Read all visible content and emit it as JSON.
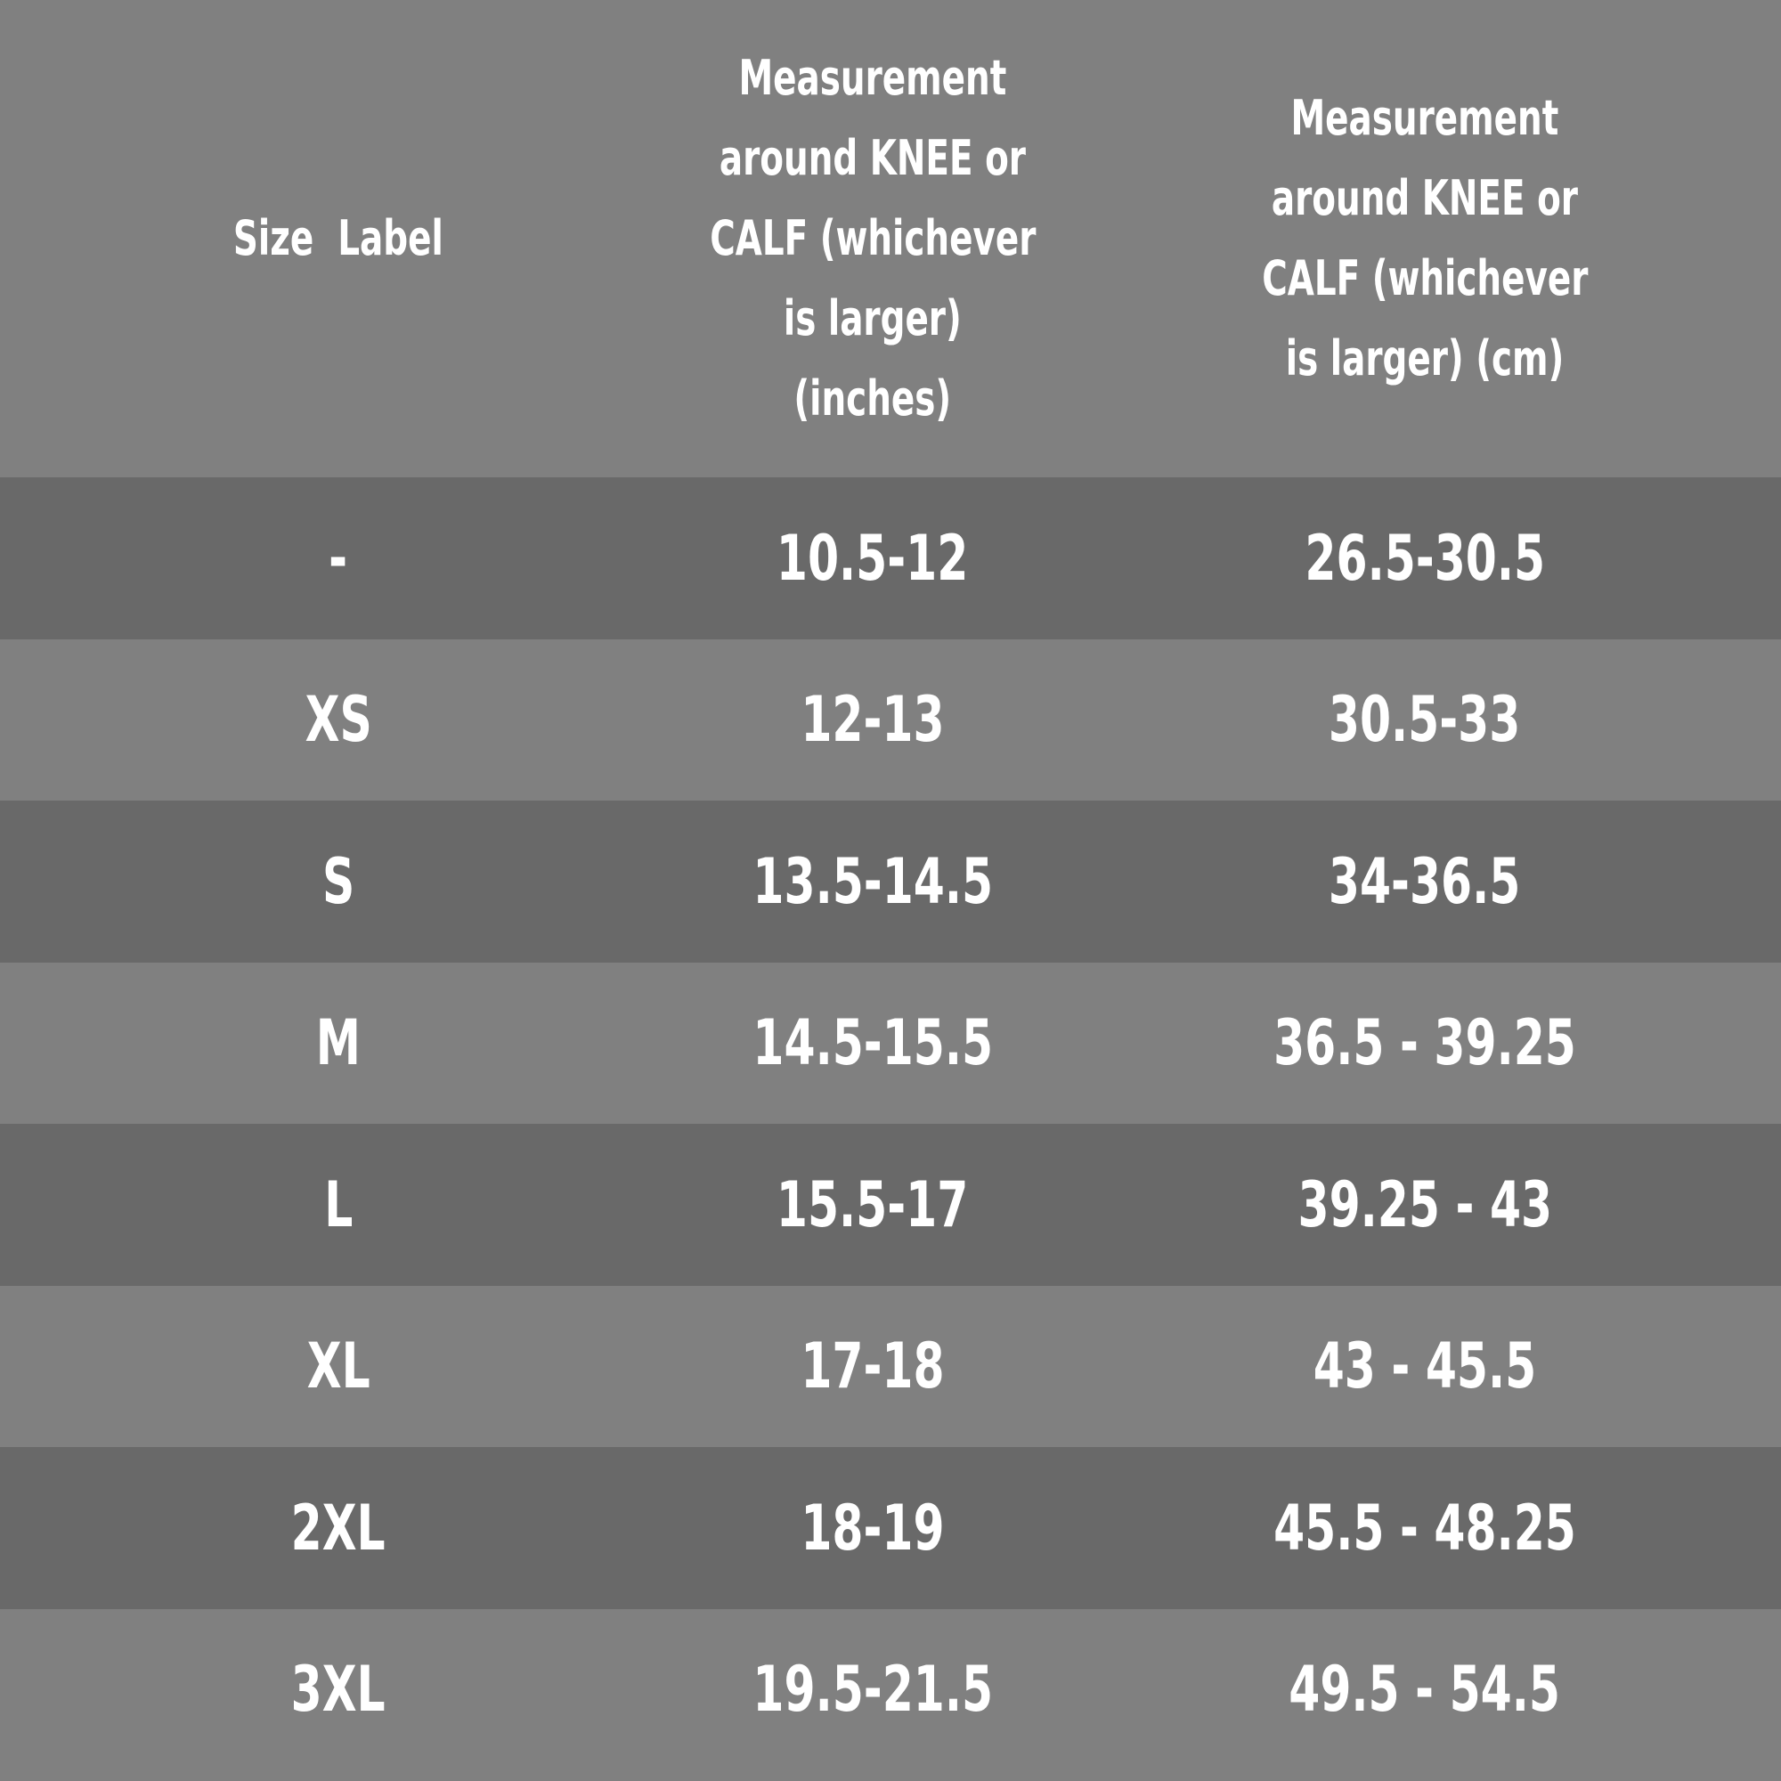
{
  "table": {
    "header": [
      [
        "Size  Label"
      ],
      [
        "Measurement",
        "around KNEE or",
        "CALF (whichever",
        "is larger)",
        "(inches)"
      ],
      [
        "Measurement",
        "around KNEE or",
        "CALF (whichever",
        "is larger) (cm)"
      ]
    ],
    "rows": [
      [
        "-",
        "10.5-12",
        "26.5-30.5"
      ],
      [
        "XS",
        "12-13",
        "30.5-33"
      ],
      [
        "S",
        "13.5-14.5",
        "34-36.5"
      ],
      [
        "M",
        "14.5-15.5",
        "36.5 - 39.25"
      ],
      [
        "L",
        "15.5-17",
        "39.25 - 43"
      ],
      [
        "XL",
        "17-18",
        "43 - 45.5"
      ],
      [
        "2XL",
        "18-19",
        "45.5 - 48.25"
      ],
      [
        "3XL",
        "19.5-21.5",
        "49.5 - 54.5"
      ]
    ]
  }
}
